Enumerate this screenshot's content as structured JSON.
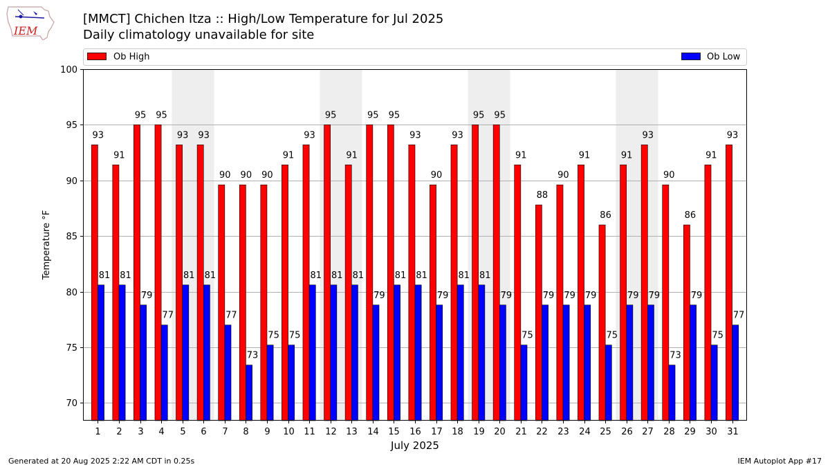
{
  "header": {
    "title": "[MMCT] Chichen Itza :: High/Low Temperature for Jul 2025",
    "subtitle": "Daily climatology unavailable for site",
    "logo_text": "IEM"
  },
  "footer": {
    "generated": "Generated at 20 Aug 2025 2:22 AM CDT in 0.25s",
    "app": "IEM Autoplot App #17"
  },
  "chart_data": {
    "type": "bar",
    "categories": [
      "1",
      "2",
      "3",
      "4",
      "5",
      "6",
      "7",
      "8",
      "9",
      "10",
      "11",
      "12",
      "13",
      "14",
      "15",
      "16",
      "17",
      "18",
      "19",
      "20",
      "21",
      "22",
      "23",
      "24",
      "25",
      "26",
      "27",
      "28",
      "29",
      "30",
      "31"
    ],
    "series": [
      {
        "name": "Ob High",
        "color": "#ff0000",
        "values": [
          93.2,
          91.4,
          95,
          95,
          93.2,
          93.2,
          89.6,
          89.6,
          89.6,
          91.4,
          93.2,
          95,
          91.4,
          95,
          95,
          93.2,
          89.6,
          93.2,
          95,
          95,
          91.4,
          87.8,
          89.6,
          91.4,
          86,
          91.4,
          93.2,
          89.6,
          86,
          91.4,
          93.2
        ],
        "labels": [
          "93",
          "91",
          "95",
          "95",
          "93",
          "93",
          "90",
          "90",
          "90",
          "91",
          "93",
          "95",
          "91",
          "95",
          "95",
          "93",
          "90",
          "93",
          "95",
          "95",
          "91",
          "88",
          "90",
          "91",
          "86",
          "91",
          "93",
          "90",
          "86",
          "91",
          "93"
        ]
      },
      {
        "name": "Ob Low",
        "color": "#0000ff",
        "values": [
          80.6,
          80.6,
          78.8,
          77,
          80.6,
          80.6,
          77,
          73.4,
          75.2,
          75.2,
          80.6,
          80.6,
          80.6,
          78.8,
          80.6,
          80.6,
          78.8,
          80.6,
          80.6,
          78.8,
          75.2,
          78.8,
          78.8,
          78.8,
          75.2,
          78.8,
          78.8,
          73.4,
          78.8,
          75.2,
          77
        ],
        "labels": [
          "81",
          "81",
          "79",
          "77",
          "81",
          "81",
          "77",
          "73",
          "75",
          "75",
          "81",
          "81",
          "81",
          "79",
          "81",
          "81",
          "79",
          "81",
          "81",
          "79",
          "75",
          "79",
          "79",
          "79",
          "75",
          "79",
          "79",
          "73",
          "79",
          "75",
          "77"
        ]
      }
    ],
    "weekend_days": [
      5,
      6,
      12,
      13,
      19,
      20,
      26,
      27
    ],
    "xlabel": "July 2025",
    "ylabel": "Temperature °F",
    "ylim": [
      68.4,
      100
    ],
    "yticks": [
      70,
      75,
      80,
      85,
      90,
      95,
      100
    ],
    "grid": "horizontal",
    "legend": {
      "high_position": "top-left",
      "low_position": "top-right"
    }
  }
}
